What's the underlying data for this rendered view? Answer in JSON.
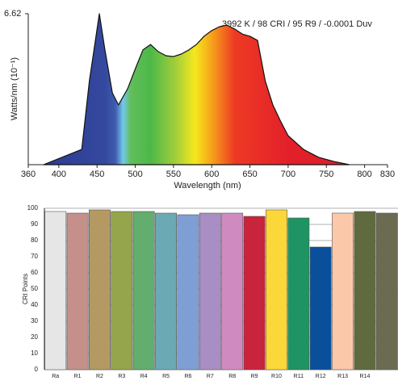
{
  "chart_data": [
    {
      "type": "area",
      "annotation": "3992 K / 98 CRI / 95 R9 / -0.0001 Duv",
      "x_label": "Wavelength (nm)",
      "y_label": "Watts/nm (10⁻¹)",
      "x": [
        380,
        430,
        440,
        453,
        460,
        470,
        478,
        490,
        500,
        510,
        520,
        530,
        540,
        550,
        560,
        570,
        580,
        590,
        600,
        610,
        620,
        630,
        640,
        650,
        660,
        670,
        680,
        690,
        700,
        720,
        740,
        760,
        780
      ],
      "values": [
        0,
        0.67,
        3.68,
        6.62,
        5.1,
        3.15,
        2.62,
        3.33,
        4.2,
        5.03,
        5.27,
        4.96,
        4.78,
        4.74,
        4.85,
        5.03,
        5.27,
        5.63,
        5.88,
        6.05,
        6.12,
        5.95,
        5.73,
        5.63,
        5.45,
        3.68,
        2.62,
        1.91,
        1.27,
        0.67,
        0.32,
        0.14,
        0
      ],
      "xlim": [
        360,
        830
      ],
      "xticks": [
        360,
        400,
        450,
        500,
        550,
        600,
        650,
        700,
        750,
        800,
        830
      ],
      "ylim": [
        0,
        6.62
      ],
      "yticks": [
        6.62
      ]
    },
    {
      "type": "bar",
      "y_label": "CRI Points",
      "categories": [
        "Ra",
        "R1",
        "R2",
        "R3",
        "R4",
        "R5",
        "R6",
        "R7",
        "R8",
        "R9",
        "R10",
        "R11",
        "R12",
        "R13",
        "R14",
        null
      ],
      "values": [
        98,
        97,
        99,
        98,
        98,
        97,
        96,
        97,
        97,
        95,
        99,
        94,
        76,
        97,
        98,
        97
      ],
      "colors": [
        "#e6e6e6",
        "#c58f8a",
        "#b49a62",
        "#94a54c",
        "#63ad6e",
        "#6ba9b4",
        "#7f9fd4",
        "#a88ec4",
        "#cf8bc0",
        "#c8243c",
        "#fcd73a",
        "#1f9463",
        "#0a4f9b",
        "#fbc9aa",
        "#5f6b3e",
        "#6b6b52"
      ],
      "ylim": [
        0,
        100
      ],
      "yticks": [
        0,
        10,
        20,
        30,
        40,
        50,
        60,
        70,
        80,
        90,
        100
      ],
      "grid": true
    }
  ]
}
